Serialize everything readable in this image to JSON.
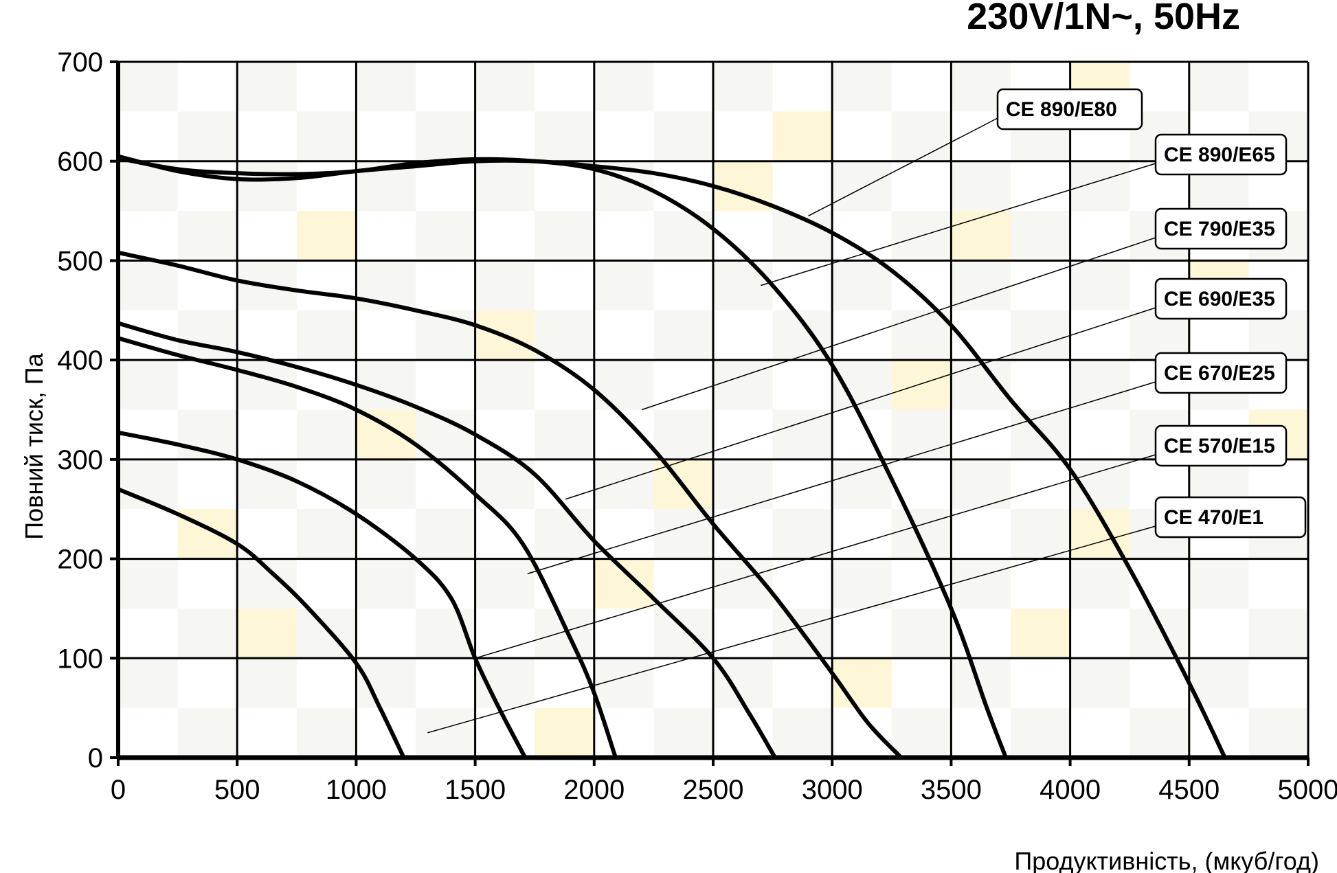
{
  "chart_data": {
    "type": "line",
    "title": "230V/1N~, 50Hz",
    "xlabel": "Продуктивність, (мкуб/год)",
    "ylabel": "Повний тиск, Па",
    "xlim": [
      0,
      5000
    ],
    "ylim": [
      0,
      700
    ],
    "x_ticks": [
      "0",
      "500",
      "1000",
      "1500",
      "2000",
      "2500",
      "3000",
      "3500",
      "4000",
      "4500",
      "5000"
    ],
    "y_ticks": [
      "0",
      "100",
      "200",
      "300",
      "400",
      "500",
      "600",
      "700"
    ],
    "grid": true,
    "series": [
      {
        "name": "CE 890/E80",
        "x": [
          0,
          250,
          500,
          750,
          1000,
          1250,
          1500,
          1750,
          2000,
          2250,
          2500,
          2750,
          3000,
          3250,
          3500,
          3750,
          4000,
          4250,
          4500,
          4650
        ],
        "y": [
          605,
          590,
          582,
          583,
          590,
          595,
          600,
          600,
          595,
          588,
          575,
          555,
          528,
          490,
          435,
          360,
          290,
          190,
          75,
          0
        ],
        "leader_point": [
          2900,
          545
        ]
      },
      {
        "name": "CE 890/E65",
        "x": [
          0,
          250,
          500,
          750,
          1000,
          1250,
          1500,
          1750,
          2000,
          2250,
          2500,
          2750,
          3000,
          3250,
          3500,
          3650,
          3730
        ],
        "y": [
          603,
          592,
          588,
          587,
          590,
          598,
          602,
          600,
          592,
          570,
          532,
          475,
          395,
          280,
          150,
          50,
          0
        ],
        "leader_point": [
          2700,
          475
        ]
      },
      {
        "name": "CE 790/E35",
        "x": [
          0,
          250,
          500,
          750,
          1000,
          1250,
          1500,
          1750,
          2000,
          2250,
          2500,
          2750,
          3000,
          3150,
          3290
        ],
        "y": [
          508,
          495,
          480,
          470,
          462,
          450,
          435,
          410,
          370,
          310,
          235,
          165,
          85,
          35,
          0
        ],
        "leader_point": [
          2200,
          350
        ]
      },
      {
        "name": "CE 690/E35",
        "x": [
          0,
          250,
          500,
          750,
          1000,
          1250,
          1500,
          1750,
          2000,
          2250,
          2500,
          2650,
          2760
        ],
        "y": [
          437,
          420,
          408,
          393,
          375,
          353,
          325,
          285,
          218,
          160,
          100,
          45,
          0
        ],
        "leader_point": [
          1880,
          260
        ]
      },
      {
        "name": "CE 670/E25",
        "x": [
          0,
          250,
          500,
          750,
          1000,
          1250,
          1500,
          1700,
          1900,
          2000,
          2090
        ],
        "y": [
          422,
          405,
          390,
          373,
          350,
          315,
          265,
          215,
          120,
          65,
          0
        ],
        "leader_point": [
          1720,
          185
        ]
      },
      {
        "name": "CE 570/E15",
        "x": [
          0,
          250,
          500,
          750,
          1000,
          1250,
          1400,
          1500,
          1600,
          1710
        ],
        "y": [
          327,
          315,
          300,
          278,
          245,
          200,
          160,
          100,
          50,
          0
        ],
        "leader_point": [
          1500,
          100
        ]
      },
      {
        "name": "CE 470/E1",
        "x": [
          0,
          250,
          500,
          650,
          800,
          1000,
          1100,
          1200
        ],
        "y": [
          270,
          245,
          215,
          185,
          150,
          95,
          50,
          0
        ],
        "leader_point": [
          1300,
          25
        ]
      }
    ]
  }
}
